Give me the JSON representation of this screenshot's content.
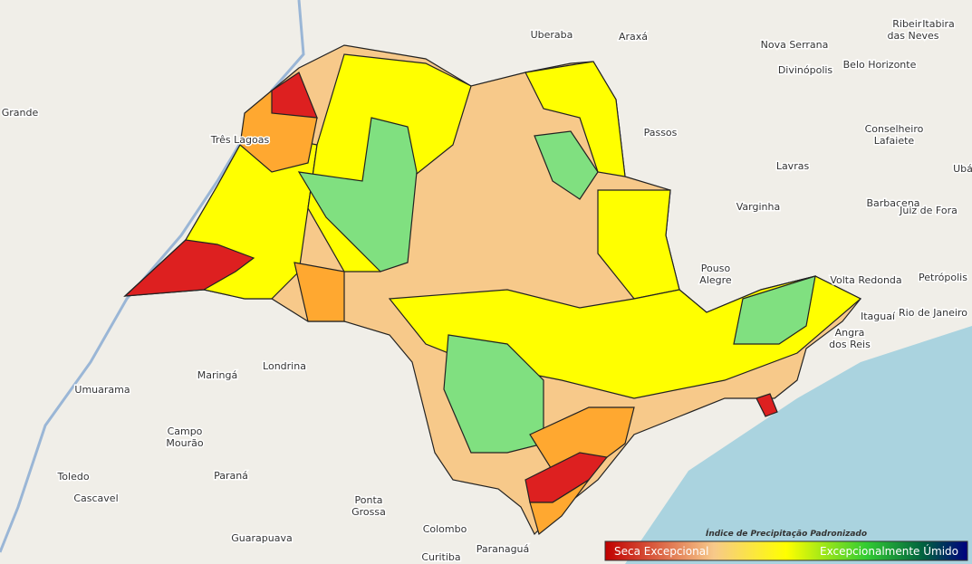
{
  "map": {
    "cities": [
      {
        "lines": [
          "Ribeirão",
          "das Neves"
        ]
      },
      {
        "lines": [
          "Itabira"
        ]
      },
      {
        "lines": [
          "Uberaba"
        ]
      },
      {
        "lines": [
          "Araxá"
        ]
      },
      {
        "lines": [
          "Nova Serrana"
        ]
      },
      {
        "lines": [
          "Divinópolis"
        ]
      },
      {
        "lines": [
          "Belo Horizonte"
        ]
      },
      {
        "lines": [
          "Grande"
        ]
      },
      {
        "lines": [
          "Três Lagoas"
        ]
      },
      {
        "lines": [
          "Passos"
        ]
      },
      {
        "lines": [
          "Conselheiro",
          "Lafaiete"
        ]
      },
      {
        "lines": [
          "Ubá"
        ]
      },
      {
        "lines": [
          "Lavras"
        ]
      },
      {
        "lines": [
          "Barbacena"
        ]
      },
      {
        "lines": [
          "Varginha"
        ]
      },
      {
        "lines": [
          "Juiz de Fora"
        ]
      },
      {
        "lines": [
          "Pouso",
          "Alegre"
        ]
      },
      {
        "lines": [
          "Volta Redonda"
        ]
      },
      {
        "lines": [
          "Petrópolis"
        ]
      },
      {
        "lines": [
          "Itaguaí"
        ]
      },
      {
        "lines": [
          "Rio de Janeiro"
        ]
      },
      {
        "lines": [
          "Angra",
          "dos Reis"
        ]
      },
      {
        "lines": [
          "Maringá"
        ]
      },
      {
        "lines": [
          "Londrina"
        ]
      },
      {
        "lines": [
          "Umuarama"
        ]
      },
      {
        "lines": [
          "Campo",
          "Mourão"
        ]
      },
      {
        "lines": [
          "Paraná"
        ]
      },
      {
        "lines": [
          "Toledo"
        ]
      },
      {
        "lines": [
          "Cascavel"
        ]
      },
      {
        "lines": [
          "Ponta",
          "Grossa"
        ]
      },
      {
        "lines": [
          "Guarapuava"
        ]
      },
      {
        "lines": [
          "Colombo"
        ]
      },
      {
        "lines": [
          "Curitiba"
        ]
      },
      {
        "lines": [
          "Paranaguá"
        ]
      }
    ],
    "legend": {
      "title": "Índice de Precipitação Padronizado",
      "low": "Seca Excepcional",
      "high": "Excepcionalmente Úmido"
    }
  }
}
